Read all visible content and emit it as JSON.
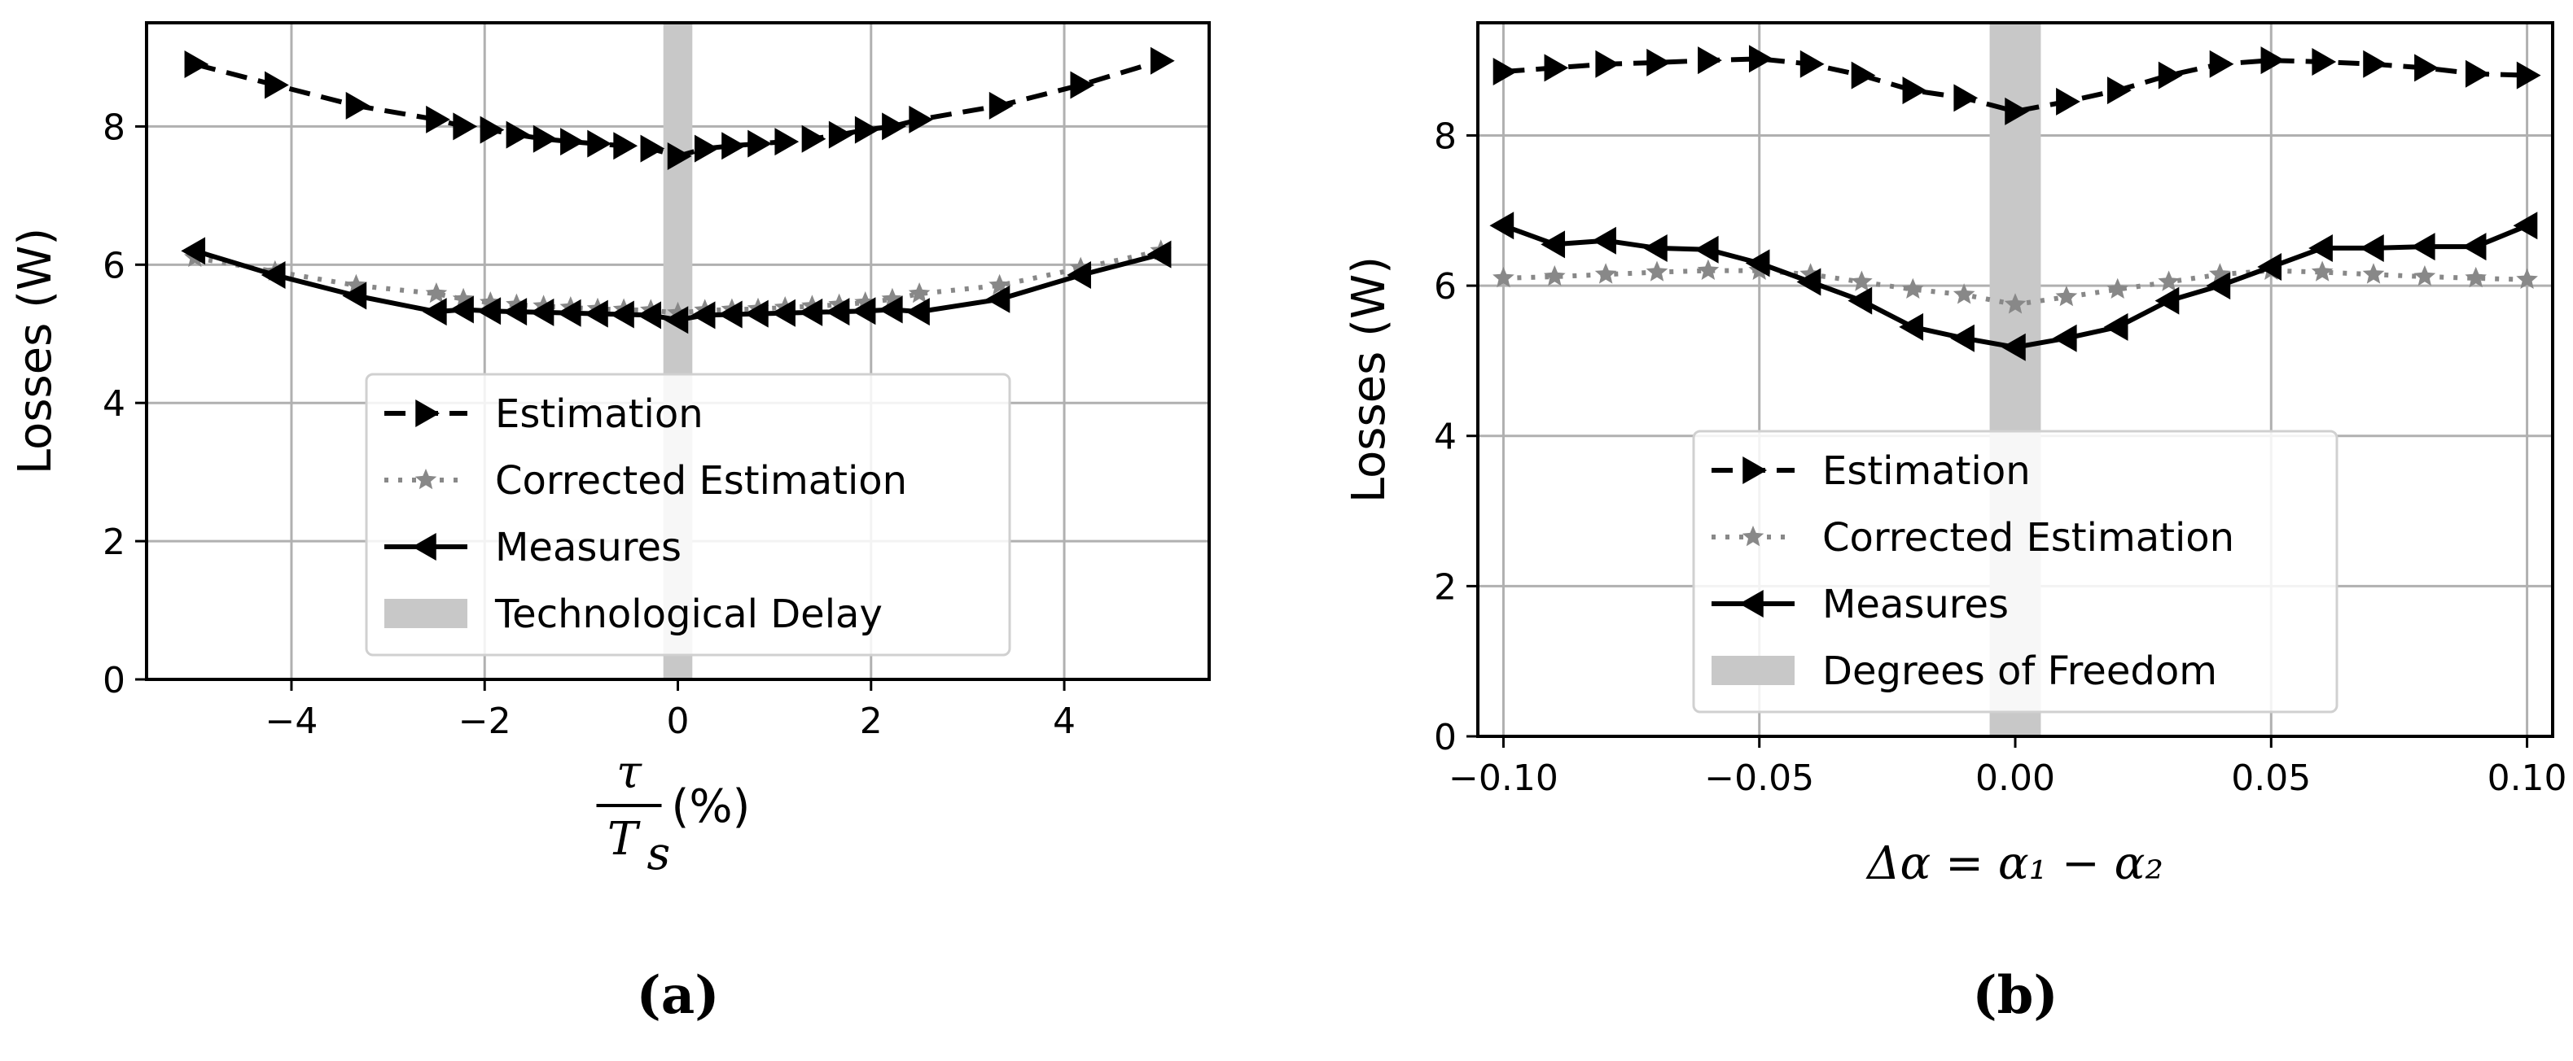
{
  "chart_data": [
    {
      "type": "line",
      "panel_label": "(a)",
      "ylabel": "Losses (W)",
      "xlabel": {
        "num": "τ",
        "den_main": "T",
        "den_sub": "s",
        "suffix": "(%)"
      },
      "xlim": [
        -5.5,
        5.5
      ],
      "ylim": [
        0,
        9.5
      ],
      "xticks": [
        -4,
        -2,
        0,
        2,
        4
      ],
      "xtick_labels": [
        "−4",
        "−2",
        "0",
        "2",
        "4"
      ],
      "yticks": [
        0,
        2,
        4,
        6,
        8
      ],
      "ytick_labels": [
        "0",
        "2",
        "4",
        "6",
        "8"
      ],
      "grid": true,
      "band": {
        "x0": -0.15,
        "x1": 0.15
      },
      "legend": [
        "Estimation",
        "Corrected Estimation",
        "Measures",
        "Technological Delay"
      ],
      "x": [
        -5,
        -4.17,
        -3.33,
        -2.5,
        -2.22,
        -1.94,
        -1.67,
        -1.39,
        -1.11,
        -0.83,
        -0.56,
        -0.28,
        0,
        0.28,
        0.56,
        0.83,
        1.11,
        1.39,
        1.67,
        1.94,
        2.22,
        2.5,
        3.33,
        4.17,
        5
      ],
      "series": [
        {
          "name": "Estimation",
          "values": [
            8.9,
            8.6,
            8.3,
            8.1,
            8.0,
            7.95,
            7.88,
            7.82,
            7.78,
            7.75,
            7.72,
            7.68,
            7.57,
            7.68,
            7.72,
            7.75,
            7.78,
            7.82,
            7.88,
            7.95,
            8.0,
            8.1,
            8.3,
            8.6,
            8.95
          ]
        },
        {
          "name": "Corrected Estimation",
          "values": [
            6.1,
            5.9,
            5.7,
            5.58,
            5.5,
            5.45,
            5.42,
            5.4,
            5.38,
            5.36,
            5.35,
            5.34,
            5.3,
            5.34,
            5.35,
            5.36,
            5.38,
            5.4,
            5.42,
            5.45,
            5.5,
            5.58,
            5.7,
            5.95,
            6.2
          ]
        },
        {
          "name": "Measures",
          "values": [
            6.2,
            5.85,
            5.55,
            5.32,
            5.35,
            5.33,
            5.32,
            5.31,
            5.3,
            5.29,
            5.28,
            5.27,
            5.2,
            5.27,
            5.28,
            5.29,
            5.3,
            5.31,
            5.32,
            5.33,
            5.35,
            5.32,
            5.5,
            5.85,
            6.15
          ]
        }
      ]
    },
    {
      "type": "line",
      "panel_label": "(b)",
      "ylabel": "Losses (W)",
      "xlabel": {
        "text": "Δα = α₁ − α₂"
      },
      "xlim": [
        -0.105,
        0.105
      ],
      "ylim": [
        0,
        9.5
      ],
      "xticks": [
        -0.1,
        -0.05,
        0,
        0.05,
        0.1
      ],
      "xtick_labels": [
        "−0.10",
        "−0.05",
        "0.00",
        "0.05",
        "0.10"
      ],
      "yticks": [
        0,
        2,
        4,
        6,
        8
      ],
      "ytick_labels": [
        "0",
        "2",
        "4",
        "6",
        "8"
      ],
      "grid": true,
      "band": {
        "x0": -0.005,
        "x1": 0.005
      },
      "legend": [
        "Estimation",
        "Corrected Estimation",
        "Measures",
        "Degrees of Freedom"
      ],
      "x": [
        -0.1,
        -0.09,
        -0.08,
        -0.07,
        -0.06,
        -0.05,
        -0.04,
        -0.03,
        -0.02,
        -0.01,
        0,
        0.01,
        0.02,
        0.03,
        0.04,
        0.05,
        0.06,
        0.07,
        0.08,
        0.09,
        0.1
      ],
      "series": [
        {
          "name": "Estimation",
          "values": [
            8.85,
            8.9,
            8.95,
            8.97,
            9.0,
            9.02,
            8.95,
            8.8,
            8.6,
            8.5,
            8.32,
            8.45,
            8.6,
            8.8,
            8.95,
            9.0,
            8.98,
            8.95,
            8.9,
            8.82,
            8.8
          ]
        },
        {
          "name": "Corrected Estimation",
          "values": [
            6.1,
            6.12,
            6.15,
            6.18,
            6.2,
            6.2,
            6.15,
            6.05,
            5.95,
            5.88,
            5.75,
            5.85,
            5.95,
            6.05,
            6.15,
            6.2,
            6.18,
            6.15,
            6.12,
            6.1,
            6.08
          ]
        },
        {
          "name": "Measures",
          "values": [
            6.8,
            6.55,
            6.6,
            6.5,
            6.48,
            6.3,
            6.05,
            5.8,
            5.45,
            5.3,
            5.18,
            5.3,
            5.45,
            5.8,
            6.0,
            6.25,
            6.5,
            6.5,
            6.52,
            6.52,
            6.8
          ]
        }
      ]
    }
  ]
}
